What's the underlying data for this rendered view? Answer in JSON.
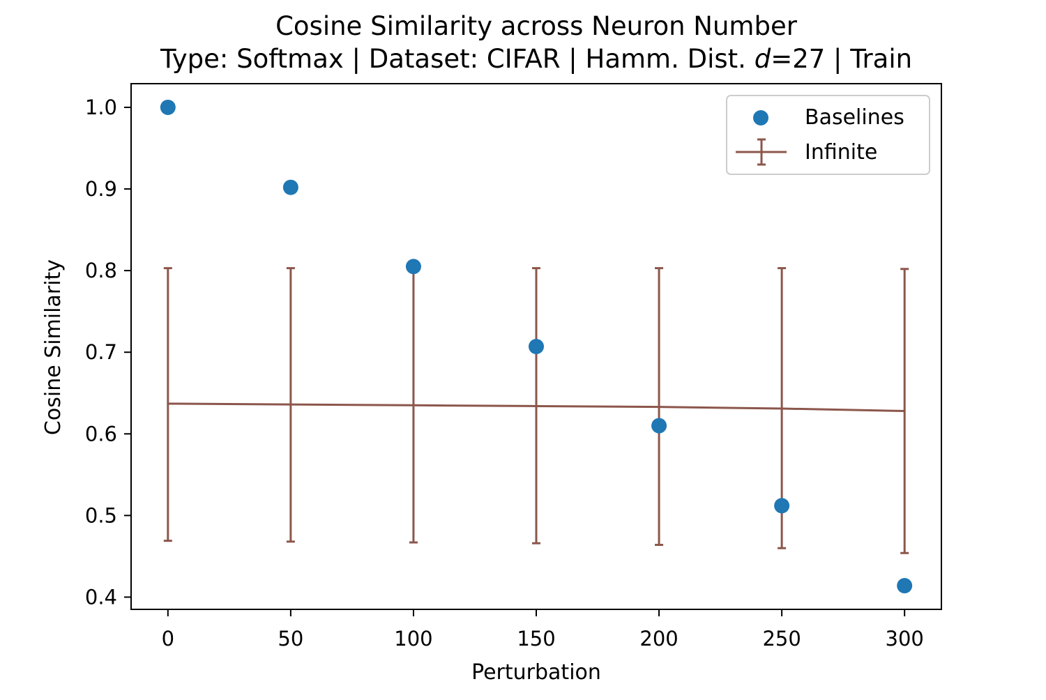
{
  "chart_data": {
    "type": "scatter",
    "title": "Cosine Similarity across Neuron Number",
    "subtitle": {
      "prefix": "Type: Softmax | Dataset: CIFAR | Hamm. Dist. ",
      "var": "d",
      "suffix": "=27 | Train"
    },
    "xlabel": "Perturbation",
    "ylabel": "Cosine Similarity",
    "xlim": [
      -15,
      315
    ],
    "ylim": [
      0.385,
      1.029
    ],
    "xticks": [
      0,
      50,
      100,
      150,
      200,
      250,
      300
    ],
    "xtick_labels": [
      "0",
      "50",
      "100",
      "150",
      "200",
      "250",
      "300"
    ],
    "yticks": [
      0.4,
      0.5,
      0.6,
      0.7,
      0.8,
      0.9,
      1.0
    ],
    "ytick_labels": [
      "0.4",
      "0.5",
      "0.6",
      "0.7",
      "0.8",
      "0.9",
      "1.0"
    ],
    "grid": false,
    "legend_position": "top-right",
    "series": [
      {
        "name": "Baselines",
        "kind": "scatter",
        "color": "#1f77b4",
        "x": [
          0,
          50,
          100,
          150,
          200,
          250,
          300
        ],
        "y": [
          1.0,
          0.902,
          0.805,
          0.707,
          0.61,
          0.512,
          0.414
        ]
      },
      {
        "name": "Infinite",
        "kind": "line_errorbar",
        "color": "#8c564b",
        "x": [
          0,
          50,
          100,
          150,
          200,
          250,
          300
        ],
        "y": [
          0.637,
          0.636,
          0.635,
          0.634,
          0.633,
          0.631,
          0.628
        ],
        "y_lower": [
          0.469,
          0.468,
          0.467,
          0.466,
          0.464,
          0.46,
          0.454
        ],
        "y_upper": [
          0.803,
          0.803,
          0.803,
          0.803,
          0.803,
          0.803,
          0.802
        ]
      }
    ]
  }
}
